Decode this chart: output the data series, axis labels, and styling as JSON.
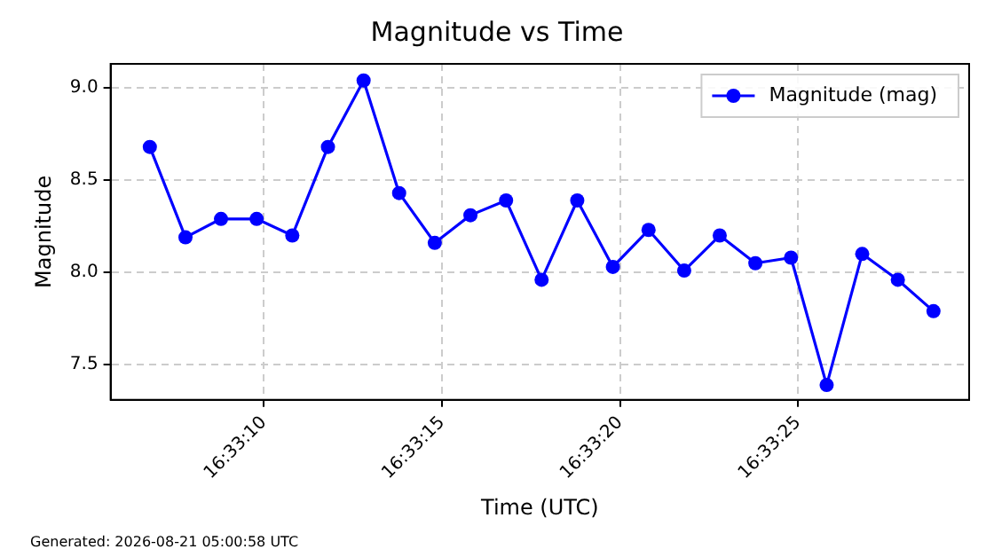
{
  "chart_data": {
    "type": "line",
    "title": "Magnitude vs Time",
    "xlabel": "Time (UTC)",
    "ylabel": "Magnitude",
    "annotations": [
      "Generated: 2026-08-21 05:00:58 UTC"
    ],
    "x": [
      16.551889,
      16.552167,
      16.552444,
      16.552722,
      16.553,
      16.553278,
      16.553556,
      16.553833,
      16.554111,
      16.554389,
      16.554667,
      16.554944,
      16.555222,
      16.5555,
      16.555778,
      16.556056,
      16.556333,
      16.556611,
      16.556889,
      16.557167,
      16.557444,
      16.557722,
      16.558
    ],
    "series": [
      {
        "name": "Magnitude (mag)",
        "color": "#0000ff",
        "values": [
          8.68,
          8.19,
          8.29,
          8.29,
          8.2,
          8.68,
          9.04,
          8.43,
          8.16,
          8.31,
          8.39,
          7.96,
          8.39,
          8.03,
          8.23,
          8.01,
          8.2,
          8.05,
          8.08,
          7.39,
          8.1,
          7.96,
          7.79
        ]
      }
    ],
    "xlim": [
      16.551583,
      16.558278
    ],
    "xticks": [
      {
        "value": 16.552778,
        "label": "16:33:10"
      },
      {
        "value": 16.554167,
        "label": "16:33:15"
      },
      {
        "value": 16.555556,
        "label": "16:33:20"
      },
      {
        "value": 16.556944,
        "label": "16:33:25"
      }
    ],
    "ylim": [
      7.31,
      9.13
    ],
    "yticks": [
      7.5,
      {
        "value": 8,
        "label": "8.0"
      },
      8.5,
      {
        "value": 9,
        "label": "9.0"
      }
    ],
    "grid": true,
    "legend": "top right",
    "marker": "circle",
    "line_style": "solid"
  }
}
